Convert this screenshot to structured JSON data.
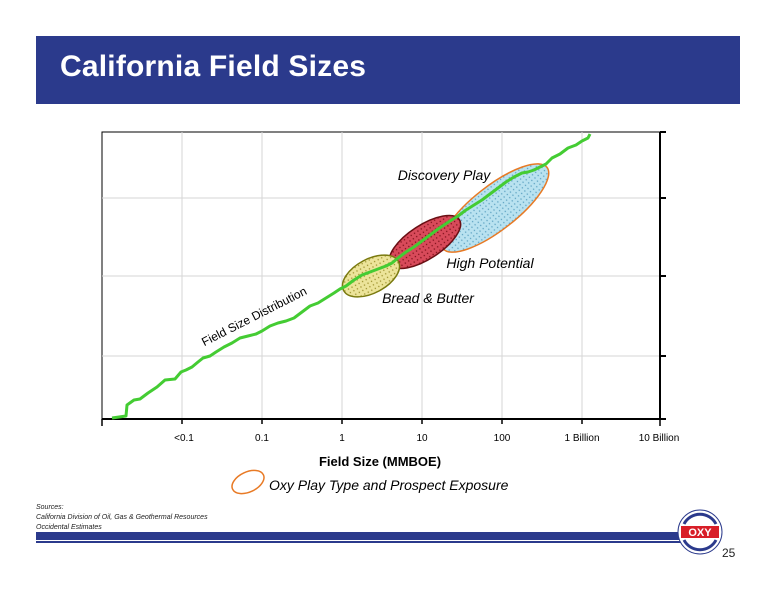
{
  "header": {
    "title": "California Field Sizes"
  },
  "chart_data": {
    "type": "line",
    "title": "",
    "xlabel": "Field Size (MMBOE)",
    "ylabel": "",
    "x_scale": "log",
    "x_tick_labels": [
      "<0.1",
      "0.1",
      "1",
      "10",
      "100",
      "1 Billion",
      "10 Billion"
    ],
    "grid": true,
    "series": [
      {
        "name": "Field Size Distribution",
        "color": "#44cc33"
      }
    ],
    "annotations": [
      {
        "label": "Discovery Play",
        "color": "#e87a25",
        "fill": "#a8d8ea"
      },
      {
        "label": "High Potential",
        "color": "#8b1a1a",
        "fill": "#c8283c"
      },
      {
        "label": "Bread & Butter",
        "color": "#7a7a10",
        "fill": "#e2d97a"
      }
    ],
    "legend": "Oxy Play Type and Prospect Exposure",
    "legend_color": "#e87a25"
  },
  "sources": {
    "heading": "Sources:",
    "lines": [
      "California Division of Oil, Gas & Geothermal Resources",
      "Occidental Estimates"
    ]
  },
  "logo": {
    "text": "OXY",
    "color": "#d81e28",
    "icon": "oxy-logo-icon"
  },
  "footer": {
    "page_number": "25"
  }
}
